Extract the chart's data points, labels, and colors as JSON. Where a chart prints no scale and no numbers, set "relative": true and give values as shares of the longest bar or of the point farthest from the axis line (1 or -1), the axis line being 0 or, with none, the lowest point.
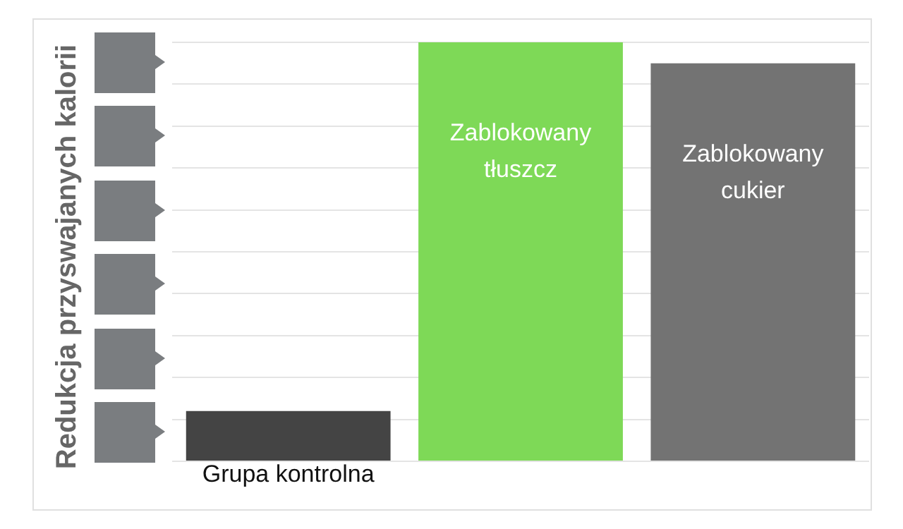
{
  "chart_data": {
    "type": "bar",
    "relative": true,
    "ylabel": "Redukcja przyswajanych kalorii",
    "categories": [
      "Grupa kontrolna",
      "Zablokowany tłuszcz",
      "Zablokowany cukier"
    ],
    "values": [
      0.12,
      1,
      0.95
    ],
    "colors": [
      "#444444",
      "#7ed957",
      "#737373"
    ],
    "grid": "y",
    "legend": false
  }
}
